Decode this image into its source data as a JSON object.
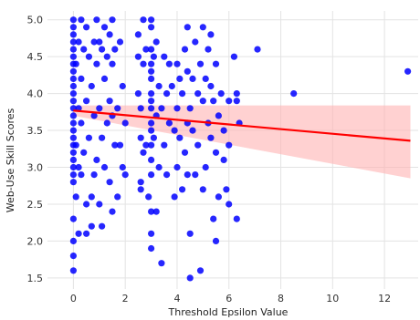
{
  "chart_data": {
    "type": "scatter",
    "title": "",
    "xlabel": "Threshold Epsilon Value",
    "ylabel": "Web-Use Skill Scores",
    "xlim": [
      -1.0,
      13.3
    ],
    "ylim": [
      1.35,
      5.12
    ],
    "xticks": [
      0,
      2,
      4,
      6,
      8,
      10,
      12
    ],
    "yticks": [
      1.5,
      2.0,
      2.5,
      3.0,
      3.5,
      4.0,
      4.5,
      5.0
    ],
    "xtick_labels": [
      "0",
      "2",
      "4",
      "6",
      "8",
      "10",
      "12"
    ],
    "ytick_labels": [
      "1.5",
      "2.0",
      "2.5",
      "3.0",
      "3.5",
      "4.0",
      "4.5",
      "5.0"
    ],
    "grid": true,
    "legend": "none",
    "colors": {
      "points": "#0000ff",
      "regression_line": "#ff0000",
      "confidence_band": "#ffb3b3"
    },
    "regression": {
      "x": [
        0,
        13
      ],
      "y": [
        3.77,
        3.36
      ],
      "ci_lower": [
        3.7,
        2.85
      ],
      "ci_upper": [
        3.84,
        3.84
      ]
    },
    "points": [
      [
        0.0,
        5.0
      ],
      [
        0.0,
        4.9
      ],
      [
        0.0,
        4.8
      ],
      [
        0.0,
        4.7
      ],
      [
        0.0,
        4.6
      ],
      [
        0.0,
        4.5
      ],
      [
        0.0,
        4.4
      ],
      [
        0.0,
        4.3
      ],
      [
        0.0,
        4.2
      ],
      [
        0.0,
        4.1
      ],
      [
        0.0,
        4.0
      ],
      [
        0.0,
        3.9
      ],
      [
        0.0,
        3.8
      ],
      [
        0.0,
        3.7
      ],
      [
        0.0,
        3.6
      ],
      [
        0.0,
        3.5
      ],
      [
        0.0,
        3.4
      ],
      [
        0.0,
        3.3
      ],
      [
        0.0,
        3.2
      ],
      [
        0.0,
        3.1
      ],
      [
        0.0,
        3.0
      ],
      [
        0.0,
        2.9
      ],
      [
        0.0,
        2.8
      ],
      [
        0.0,
        2.3
      ],
      [
        0.0,
        2.0
      ],
      [
        0.0,
        1.8
      ],
      [
        0.0,
        1.6
      ],
      [
        0.1,
        4.4
      ],
      [
        0.1,
        3.3
      ],
      [
        0.1,
        2.6
      ],
      [
        0.2,
        4.7
      ],
      [
        0.2,
        3.8
      ],
      [
        0.2,
        3.0
      ],
      [
        0.2,
        2.1
      ],
      [
        0.3,
        5.0
      ],
      [
        0.3,
        4.2
      ],
      [
        0.3,
        3.6
      ],
      [
        0.3,
        2.9
      ],
      [
        0.4,
        4.6
      ],
      [
        0.4,
        3.2
      ],
      [
        0.5,
        4.9
      ],
      [
        0.5,
        3.9
      ],
      [
        0.5,
        2.5
      ],
      [
        0.5,
        2.1
      ],
      [
        0.6,
        4.5
      ],
      [
        0.6,
        3.4
      ],
      [
        0.7,
        4.1
      ],
      [
        0.7,
        2.6
      ],
      [
        0.7,
        2.2
      ],
      [
        0.8,
        4.7
      ],
      [
        0.8,
        3.7
      ],
      [
        0.8,
        2.9
      ],
      [
        0.9,
        5.0
      ],
      [
        0.9,
        4.4
      ],
      [
        0.9,
        3.1
      ],
      [
        1.0,
        4.7
      ],
      [
        1.0,
        3.8
      ],
      [
        1.0,
        2.5
      ],
      [
        1.1,
        4.6
      ],
      [
        1.1,
        3.4
      ],
      [
        1.1,
        2.2
      ],
      [
        1.2,
        4.9
      ],
      [
        1.2,
        4.2
      ],
      [
        1.2,
        3.0
      ],
      [
        1.3,
        4.5
      ],
      [
        1.3,
        3.6
      ],
      [
        1.4,
        4.8
      ],
      [
        1.4,
        3.9
      ],
      [
        1.4,
        2.8
      ],
      [
        1.5,
        5.0
      ],
      [
        1.5,
        4.4
      ],
      [
        1.5,
        3.7
      ],
      [
        1.5,
        2.4
      ],
      [
        1.6,
        4.6
      ],
      [
        1.6,
        3.3
      ],
      [
        1.7,
        3.8
      ],
      [
        1.7,
        2.6
      ],
      [
        1.8,
        4.7
      ],
      [
        1.8,
        3.3
      ],
      [
        1.9,
        4.1
      ],
      [
        1.9,
        3.0
      ],
      [
        2.0,
        3.6
      ],
      [
        2.0,
        2.9
      ],
      [
        2.5,
        4.8
      ],
      [
        2.5,
        4.5
      ],
      [
        2.5,
        4.0
      ],
      [
        2.6,
        3.8
      ],
      [
        2.6,
        3.4
      ],
      [
        2.6,
        2.8
      ],
      [
        2.6,
        2.7
      ],
      [
        2.7,
        5.0
      ],
      [
        2.7,
        4.4
      ],
      [
        2.7,
        3.2
      ],
      [
        2.8,
        4.6
      ],
      [
        2.8,
        3.3
      ],
      [
        2.9,
        2.6
      ],
      [
        3.0,
        5.0
      ],
      [
        3.0,
        4.9
      ],
      [
        3.0,
        4.6
      ],
      [
        3.0,
        4.4
      ],
      [
        3.0,
        4.3
      ],
      [
        3.0,
        4.2
      ],
      [
        3.0,
        4.0
      ],
      [
        3.0,
        3.9
      ],
      [
        3.0,
        3.8
      ],
      [
        3.0,
        3.6
      ],
      [
        3.0,
        3.5
      ],
      [
        3.0,
        3.3
      ],
      [
        3.0,
        3.1
      ],
      [
        3.0,
        2.9
      ],
      [
        3.0,
        2.4
      ],
      [
        3.0,
        2.1
      ],
      [
        3.0,
        1.9
      ],
      [
        3.1,
        4.5
      ],
      [
        3.1,
        3.4
      ],
      [
        3.2,
        4.7
      ],
      [
        3.2,
        3.7
      ],
      [
        3.2,
        2.4
      ],
      [
        3.3,
        4.1
      ],
      [
        3.3,
        3.0
      ],
      [
        3.4,
        3.8
      ],
      [
        3.4,
        1.7
      ],
      [
        3.5,
        4.5
      ],
      [
        3.5,
        3.3
      ],
      [
        3.6,
        4.0
      ],
      [
        3.6,
        2.9
      ],
      [
        3.7,
        4.4
      ],
      [
        3.7,
        3.6
      ],
      [
        3.8,
        4.1
      ],
      [
        3.9,
        3.5
      ],
      [
        3.9,
        2.6
      ],
      [
        4.0,
        4.4
      ],
      [
        4.0,
        3.8
      ],
      [
        4.0,
        3.0
      ],
      [
        4.1,
        4.2
      ],
      [
        4.1,
        3.4
      ],
      [
        4.2,
        4.0
      ],
      [
        4.2,
        2.7
      ],
      [
        4.3,
        4.6
      ],
      [
        4.3,
        3.2
      ],
      [
        4.4,
        4.9
      ],
      [
        4.4,
        4.3
      ],
      [
        4.4,
        3.6
      ],
      [
        4.4,
        2.9
      ],
      [
        4.5,
        3.8
      ],
      [
        4.5,
        2.1
      ],
      [
        4.5,
        1.5
      ],
      [
        4.6,
        4.2
      ],
      [
        4.6,
        3.5
      ],
      [
        4.7,
        4.7
      ],
      [
        4.7,
        2.9
      ],
      [
        4.8,
        4.0
      ],
      [
        4.8,
        3.3
      ],
      [
        4.9,
        4.4
      ],
      [
        4.9,
        1.6
      ],
      [
        5.0,
        4.9
      ],
      [
        5.0,
        3.9
      ],
      [
        5.0,
        2.7
      ],
      [
        5.1,
        4.2
      ],
      [
        5.1,
        3.0
      ],
      [
        5.2,
        4.6
      ],
      [
        5.2,
        3.6
      ],
      [
        5.3,
        4.8
      ],
      [
        5.3,
        4.1
      ],
      [
        5.3,
        3.4
      ],
      [
        5.4,
        3.9
      ],
      [
        5.4,
        2.3
      ],
      [
        5.5,
        4.4
      ],
      [
        5.5,
        3.2
      ],
      [
        5.5,
        2.0
      ],
      [
        5.6,
        3.7
      ],
      [
        5.6,
        2.6
      ],
      [
        5.7,
        4.0
      ],
      [
        5.8,
        3.5
      ],
      [
        5.8,
        3.1
      ],
      [
        5.9,
        2.7
      ],
      [
        6.0,
        3.9
      ],
      [
        6.0,
        3.3
      ],
      [
        6.0,
        2.5
      ],
      [
        6.2,
        4.5
      ],
      [
        6.3,
        4.0
      ],
      [
        6.3,
        3.9
      ],
      [
        6.3,
        2.3
      ],
      [
        6.4,
        3.6
      ],
      [
        7.1,
        4.6
      ],
      [
        8.5,
        4.0
      ],
      [
        12.9,
        4.3
      ]
    ]
  }
}
